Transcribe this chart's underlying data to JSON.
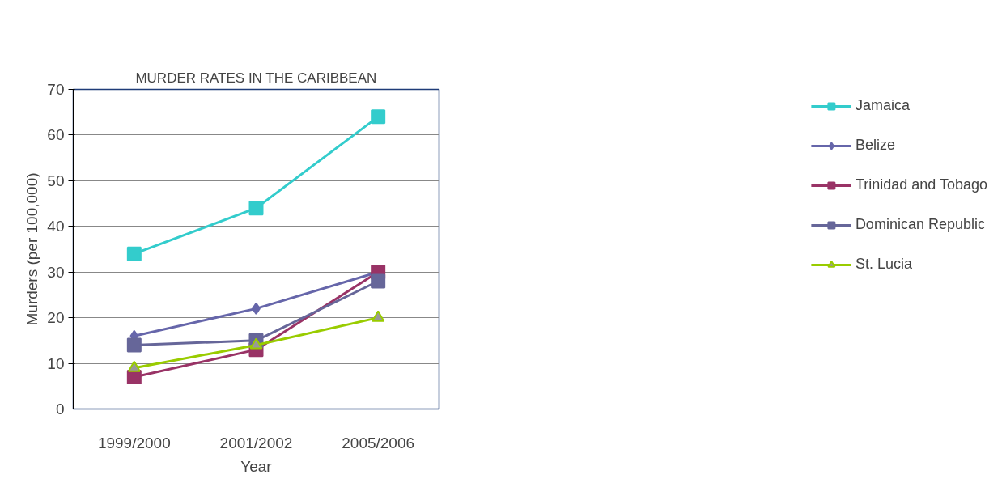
{
  "chart_data": {
    "type": "line",
    "title": "MURDER RATES IN THE CARIBBEAN",
    "xlabel": "Year",
    "ylabel": "Murders (per 100,000)",
    "categories": [
      "1999/2000",
      "2001/2002",
      "2005/2006"
    ],
    "series": [
      {
        "name": "Jamaica",
        "color": "#33cccc",
        "marker": "square",
        "values": [
          34,
          44,
          64
        ]
      },
      {
        "name": "Belize",
        "color": "#6666aa",
        "marker": "diamond",
        "values": [
          16,
          22,
          30
        ]
      },
      {
        "name": "Trinidad and Tobago",
        "color": "#993366",
        "marker": "square",
        "values": [
          7,
          13,
          30
        ]
      },
      {
        "name": "Dominican Republic",
        "color": "#666699",
        "marker": "square",
        "values": [
          14,
          15,
          28
        ]
      },
      {
        "name": "St. Lucia",
        "color": "#99cc00",
        "marker": "triangle",
        "values": [
          9,
          14,
          20
        ]
      }
    ],
    "ylim": [
      0,
      70
    ],
    "yticks": [
      0,
      10,
      20,
      30,
      40,
      50,
      60,
      70
    ],
    "grid": "y",
    "legend": "right"
  }
}
